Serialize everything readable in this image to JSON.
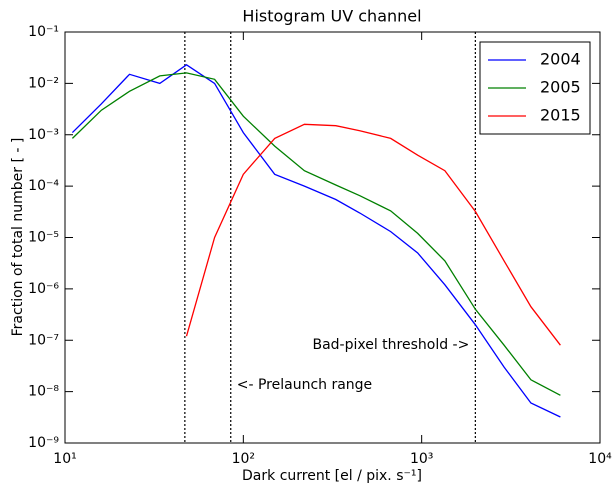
{
  "chart_data": {
    "type": "line",
    "title": "Histogram UV channel",
    "xlabel": "Dark current [el / pix. s⁻¹]",
    "ylabel": "Fraction of total number [ - ]",
    "xscale": "log",
    "yscale": "log",
    "x": [
      11,
      16,
      23,
      34,
      48,
      69,
      100,
      150,
      220,
      330,
      450,
      670,
      950,
      1350,
      2000,
      2900,
      4100,
      6000
    ],
    "series": [
      {
        "name": "2004",
        "color": "#0000ff",
        "values": [
          0.0011,
          0.004,
          0.015,
          0.01,
          0.023,
          0.01,
          0.0011,
          0.00017,
          0.0001,
          5.5e-05,
          3e-05,
          1.3e-05,
          5e-06,
          1.2e-06,
          2e-07,
          3e-08,
          6e-09,
          3.2e-09
        ]
      },
      {
        "name": "2005",
        "color": "#008000",
        "values": [
          0.00085,
          0.003,
          0.007,
          0.014,
          0.016,
          0.012,
          0.0023,
          0.0006,
          0.0002,
          0.000105,
          6.5e-05,
          3.3e-05,
          1.2e-05,
          3.5e-06,
          4e-07,
          8e-08,
          1.7e-08,
          8.5e-09
        ]
      },
      {
        "name": "2015",
        "color": "#ff0000",
        "values": [
          null,
          null,
          null,
          null,
          1.2e-07,
          1e-05,
          0.00017,
          0.00085,
          0.0016,
          0.0015,
          0.0012,
          0.00085,
          0.0004,
          0.0002,
          3.2e-05,
          3.5e-06,
          4.5e-07,
          8e-08
        ]
      }
    ],
    "xlim": [
      10,
      10000
    ],
    "xticks": [
      {
        "value": 10,
        "label": "10¹"
      },
      {
        "value": 100,
        "label": "10²"
      },
      {
        "value": 1000,
        "label": "10³"
      },
      {
        "value": 10000,
        "label": "10⁴"
      }
    ],
    "ylim": [
      1e-09,
      0.1
    ],
    "yticks": [
      {
        "value": 1e-09,
        "label": "10⁻⁹"
      },
      {
        "value": 1e-08,
        "label": "10⁻⁸"
      },
      {
        "value": 1e-07,
        "label": "10⁻⁷"
      },
      {
        "value": 1e-06,
        "label": "10⁻⁶"
      },
      {
        "value": 1e-05,
        "label": "10⁻⁵"
      },
      {
        "value": 0.0001,
        "label": "10⁻⁴"
      },
      {
        "value": 0.001,
        "label": "10⁻³"
      },
      {
        "value": 0.01,
        "label": "10⁻²"
      },
      {
        "value": 0.1,
        "label": "10⁻¹"
      }
    ],
    "vlines": [
      47,
      85,
      2000
    ],
    "annotations": [
      "<- Prelaunch range",
      "Bad-pixel threshold ->"
    ],
    "legend": "upper right",
    "grid": false
  }
}
